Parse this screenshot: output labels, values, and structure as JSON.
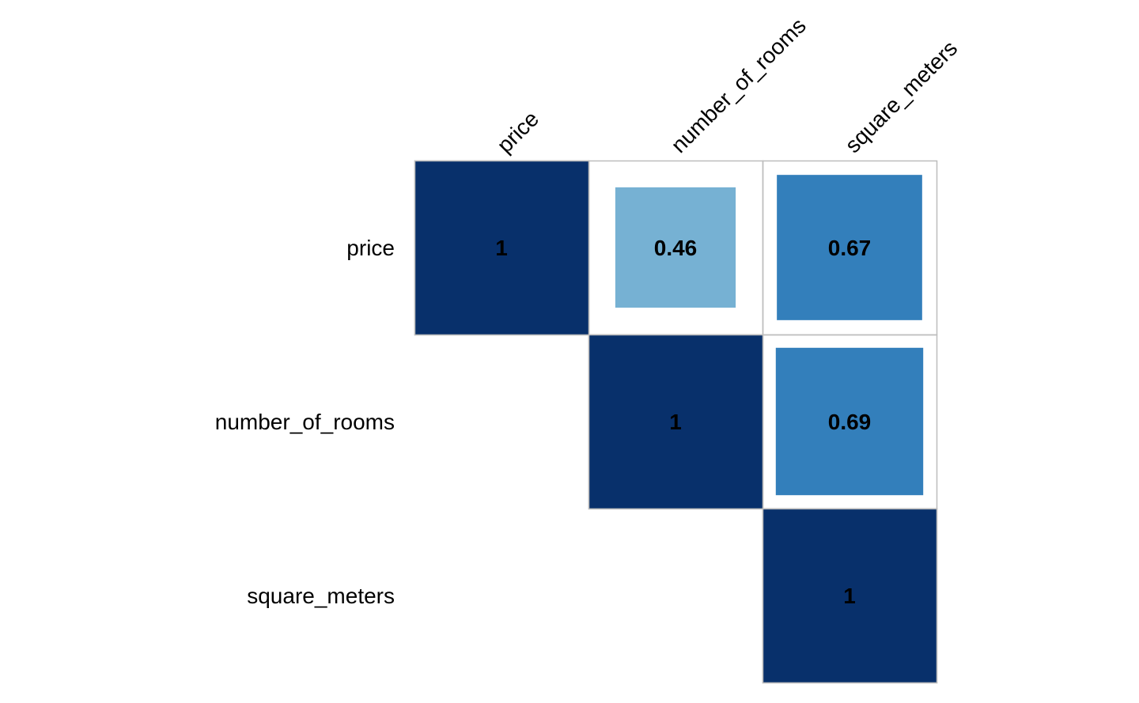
{
  "chart_data": {
    "type": "heatmap",
    "variables": [
      "price",
      "number_of_rooms",
      "square_meters"
    ],
    "layout": "upper-triangle",
    "cells": [
      {
        "row": 0,
        "col": 0,
        "value": 1,
        "label": "1"
      },
      {
        "row": 0,
        "col": 1,
        "value": 0.46,
        "label": "0.46"
      },
      {
        "row": 0,
        "col": 2,
        "value": 0.67,
        "label": "0.67"
      },
      {
        "row": 1,
        "col": 1,
        "value": 1,
        "label": "1"
      },
      {
        "row": 1,
        "col": 2,
        "value": 0.69,
        "label": "0.69"
      },
      {
        "row": 2,
        "col": 2,
        "value": 1,
        "label": "1"
      }
    ],
    "color_scale": {
      "low": "#c6dbef",
      "mid": "#6baed6",
      "high": "#08306b"
    },
    "grid_color": "#bdbdbd",
    "title": "",
    "xlabel": "",
    "ylabel": ""
  }
}
